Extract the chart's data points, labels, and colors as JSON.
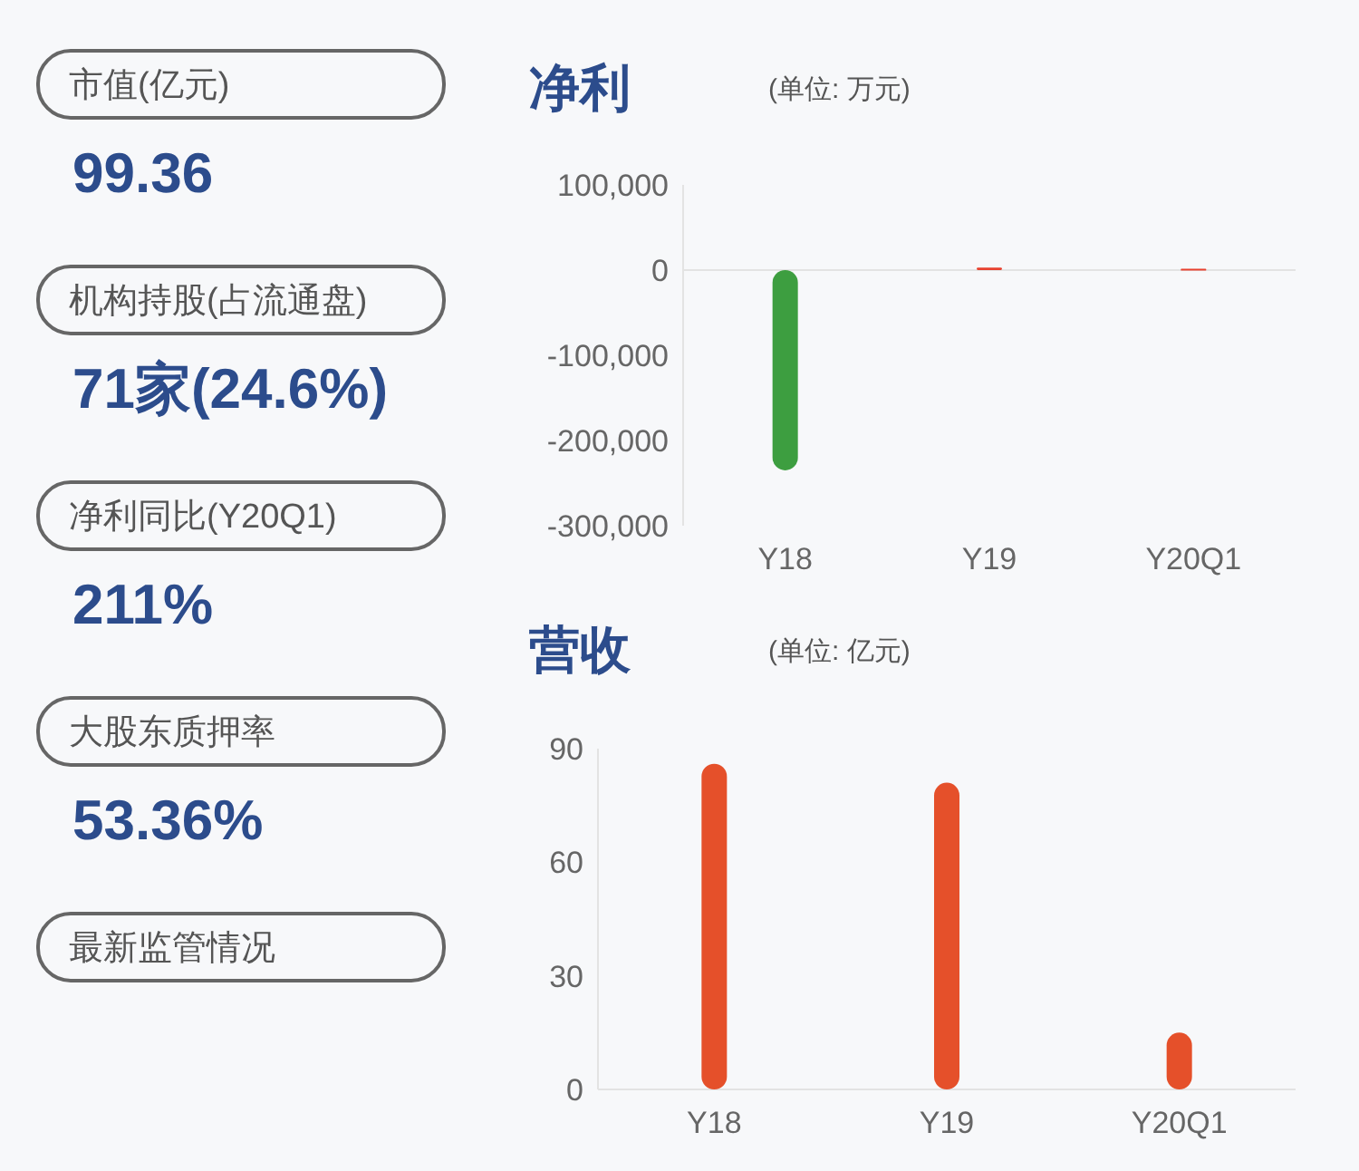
{
  "chart_data": [
    {
      "type": "other",
      "annotations": [
        "市值(亿元)",
        "99.36",
        "机构持股(占流通盘)",
        "71家(24.6%)",
        "净利同比(Y20Q1)",
        "211%",
        "大股东质押率",
        "53.36%",
        "最新监管情况"
      ]
    },
    {
      "type": "bar",
      "title": "净利",
      "subtitle": "(单位: 万元)",
      "categories": [
        "Y18",
        "Y19",
        "Y20Q1"
      ],
      "values": [
        -235000,
        3000,
        1500
      ],
      "colors": [
        "#3d9e40",
        "#e8412f",
        "#e8412f"
      ],
      "ylim": [
        -300000,
        100000
      ],
      "yticks": [
        {
          "value": 100000,
          "label": "100,000"
        },
        0,
        {
          "value": -100000,
          "label": "-100,000"
        },
        {
          "value": -200000,
          "label": "-200,000"
        },
        {
          "value": -300000,
          "label": "-300,000"
        }
      ]
    },
    {
      "type": "bar",
      "title": "营收",
      "subtitle": "(单位: 亿元)",
      "categories": [
        "Y18",
        "Y19",
        "Y20Q1"
      ],
      "values": [
        86,
        81,
        15
      ],
      "color": "#e5502a",
      "ylim": [
        0,
        90
      ],
      "yticks": [
        0,
        30,
        60,
        90
      ]
    }
  ]
}
